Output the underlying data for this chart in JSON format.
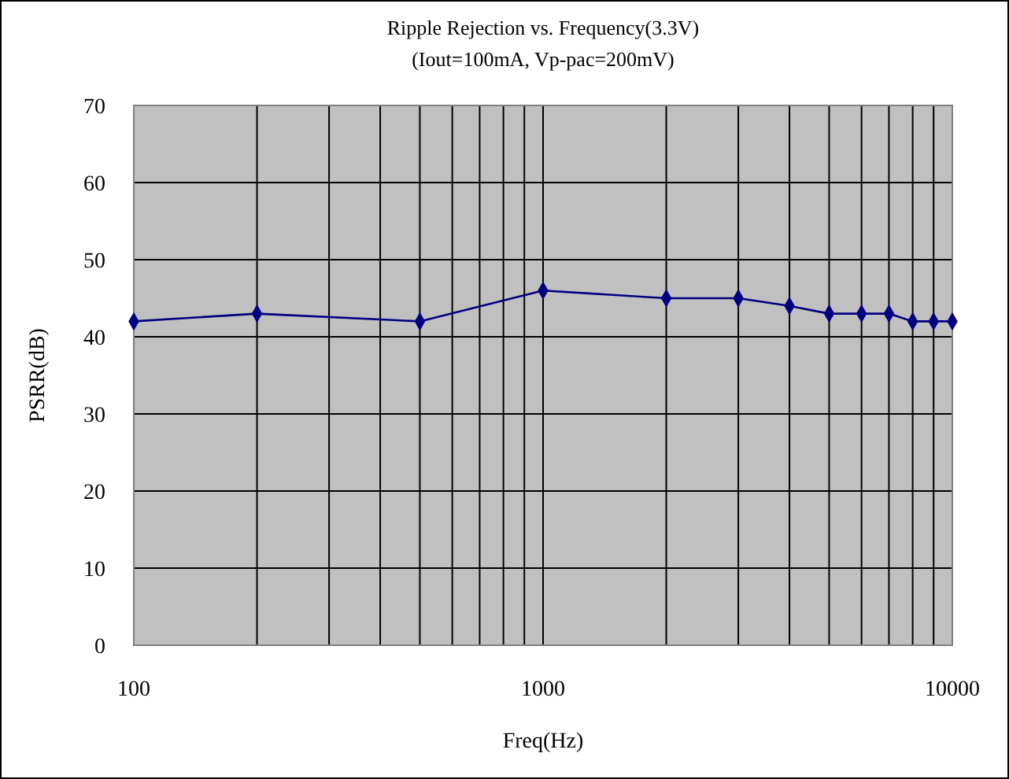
{
  "chart_data": {
    "type": "line",
    "title": "Ripple Rejection vs. Frequency(3.3V)",
    "subtitle": "(Iout=100mA, Vp-pac=200mV)",
    "xlabel": "Freq(Hz)",
    "ylabel": "PSRR(dB)",
    "x": [
      100,
      200,
      500,
      1000,
      2000,
      3000,
      4000,
      5000,
      6000,
      7000,
      8000,
      9000,
      10000
    ],
    "series": [
      {
        "color": "#000080",
        "values": [
          42,
          43,
          42,
          46,
          45,
          45,
          44,
          43,
          43,
          43,
          42,
          42,
          42
        ]
      }
    ],
    "log": "x",
    "xlim": [
      100,
      10000
    ],
    "xticks": [
      100,
      1000,
      10000
    ],
    "ylim": [
      0,
      70
    ],
    "yticks": [
      0,
      10,
      20,
      30,
      40,
      50,
      60,
      70
    ],
    "grid": true,
    "marker": "diamond",
    "line_style": "solid"
  }
}
